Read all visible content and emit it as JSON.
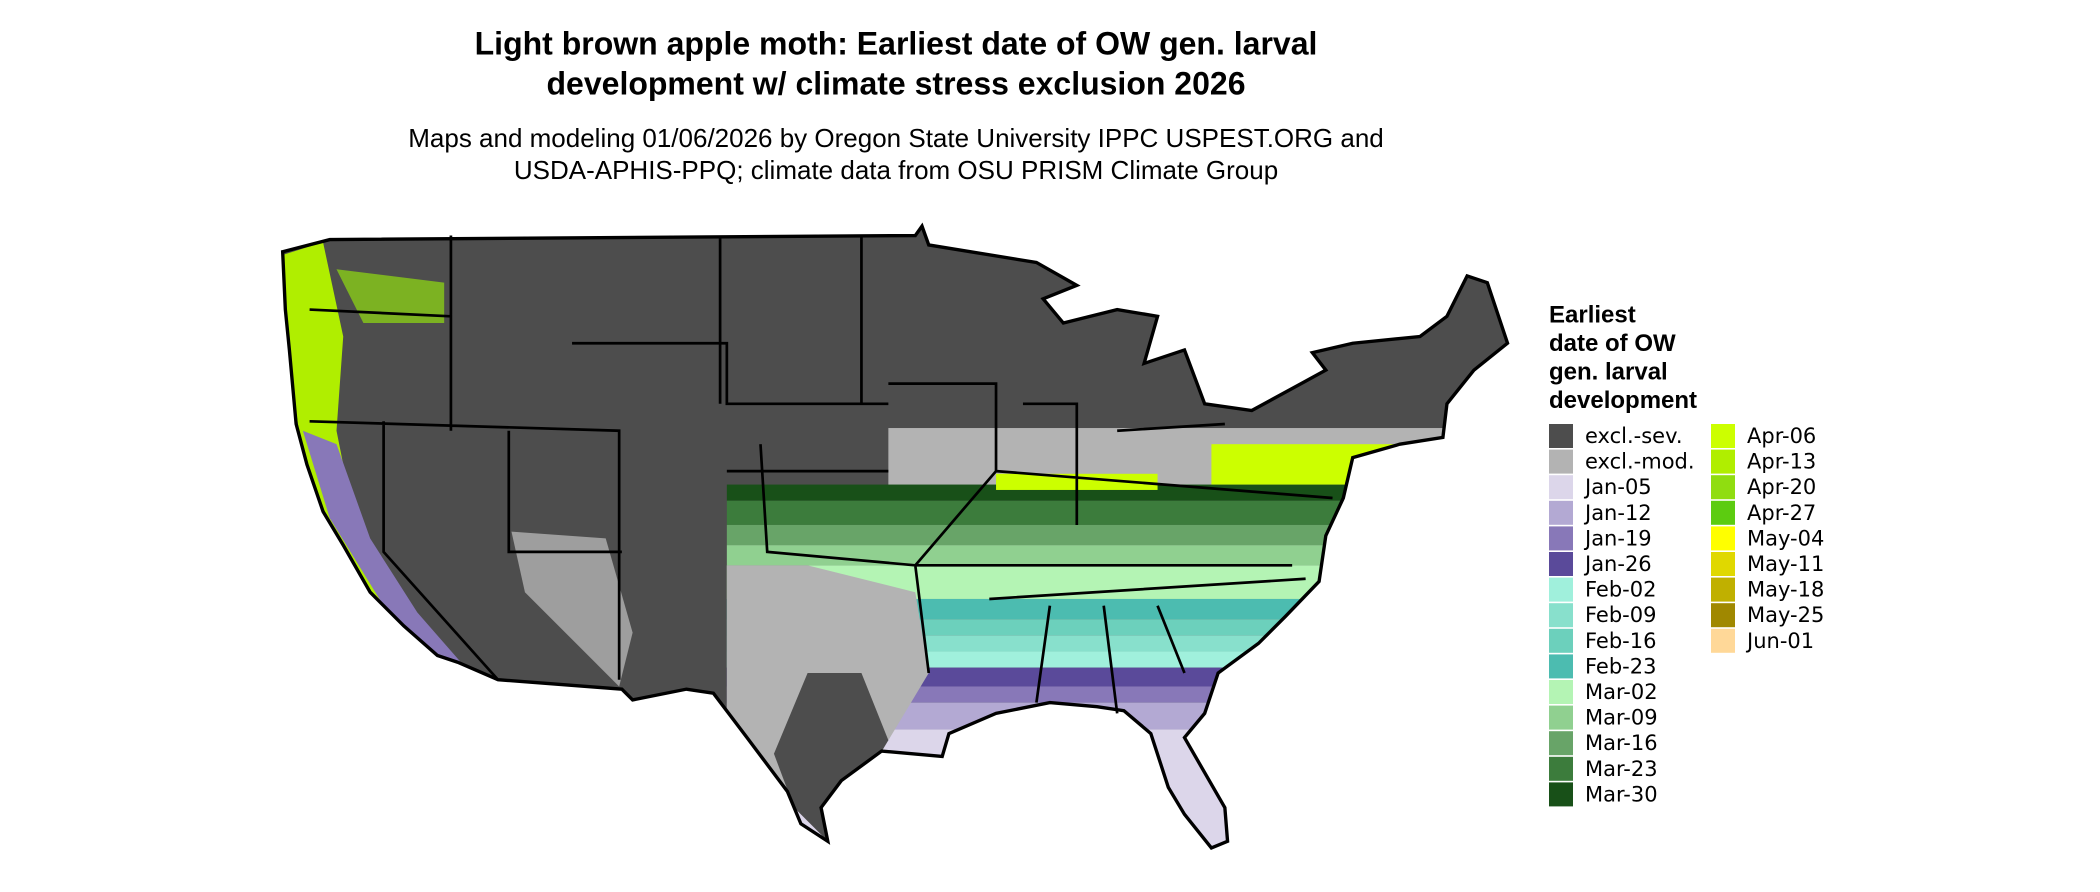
{
  "title": [
    "Light brown apple moth: Earliest date of OW gen. larval",
    "development w/ climate stress exclusion 2026"
  ],
  "subtitle": [
    "Maps and modeling 01/06/2026 by Oregon State University IPPC USPEST.ORG and",
    "USDA-APHIS-PPQ; climate data from OSU PRISM Climate Group"
  ],
  "legend": {
    "title": [
      "Earliest",
      "date of OW",
      "gen. larval",
      "development"
    ],
    "items": [
      {
        "label": "excl.-sev.",
        "color": "#4d4d4d"
      },
      {
        "label": "excl.-mod.",
        "color": "#b3b3b3"
      },
      {
        "label": "Jan-05",
        "color": "#dcd6ea"
      },
      {
        "label": "Jan-12",
        "color": "#b3a9d3"
      },
      {
        "label": "Jan-19",
        "color": "#8878b8"
      },
      {
        "label": "Jan-26",
        "color": "#5a4a9a"
      },
      {
        "label": "Feb-02",
        "color": "#a0f0dc"
      },
      {
        "label": "Feb-09",
        "color": "#88e0cc"
      },
      {
        "label": "Feb-16",
        "color": "#6cd0bc"
      },
      {
        "label": "Feb-23",
        "color": "#4cbcb0"
      },
      {
        "label": "Mar-02",
        "color": "#b4f4b4"
      },
      {
        "label": "Mar-09",
        "color": "#90d090"
      },
      {
        "label": "Mar-16",
        "color": "#68a468"
      },
      {
        "label": "Mar-23",
        "color": "#3c7c3c"
      },
      {
        "label": "Mar-30",
        "color": "#185018"
      },
      {
        "label": "Apr-06",
        "color": "#ccff00"
      },
      {
        "label": "Apr-13",
        "color": "#b0ee00"
      },
      {
        "label": "Apr-20",
        "color": "#90dd10"
      },
      {
        "label": "Apr-27",
        "color": "#5ccc10"
      },
      {
        "label": "May-04",
        "color": "#ffff00"
      },
      {
        "label": "May-11",
        "color": "#e0d800"
      },
      {
        "label": "May-18",
        "color": "#c0b000"
      },
      {
        "label": "May-25",
        "color": "#a08800"
      },
      {
        "label": "Jun-01",
        "color": "#ffd898"
      }
    ]
  }
}
